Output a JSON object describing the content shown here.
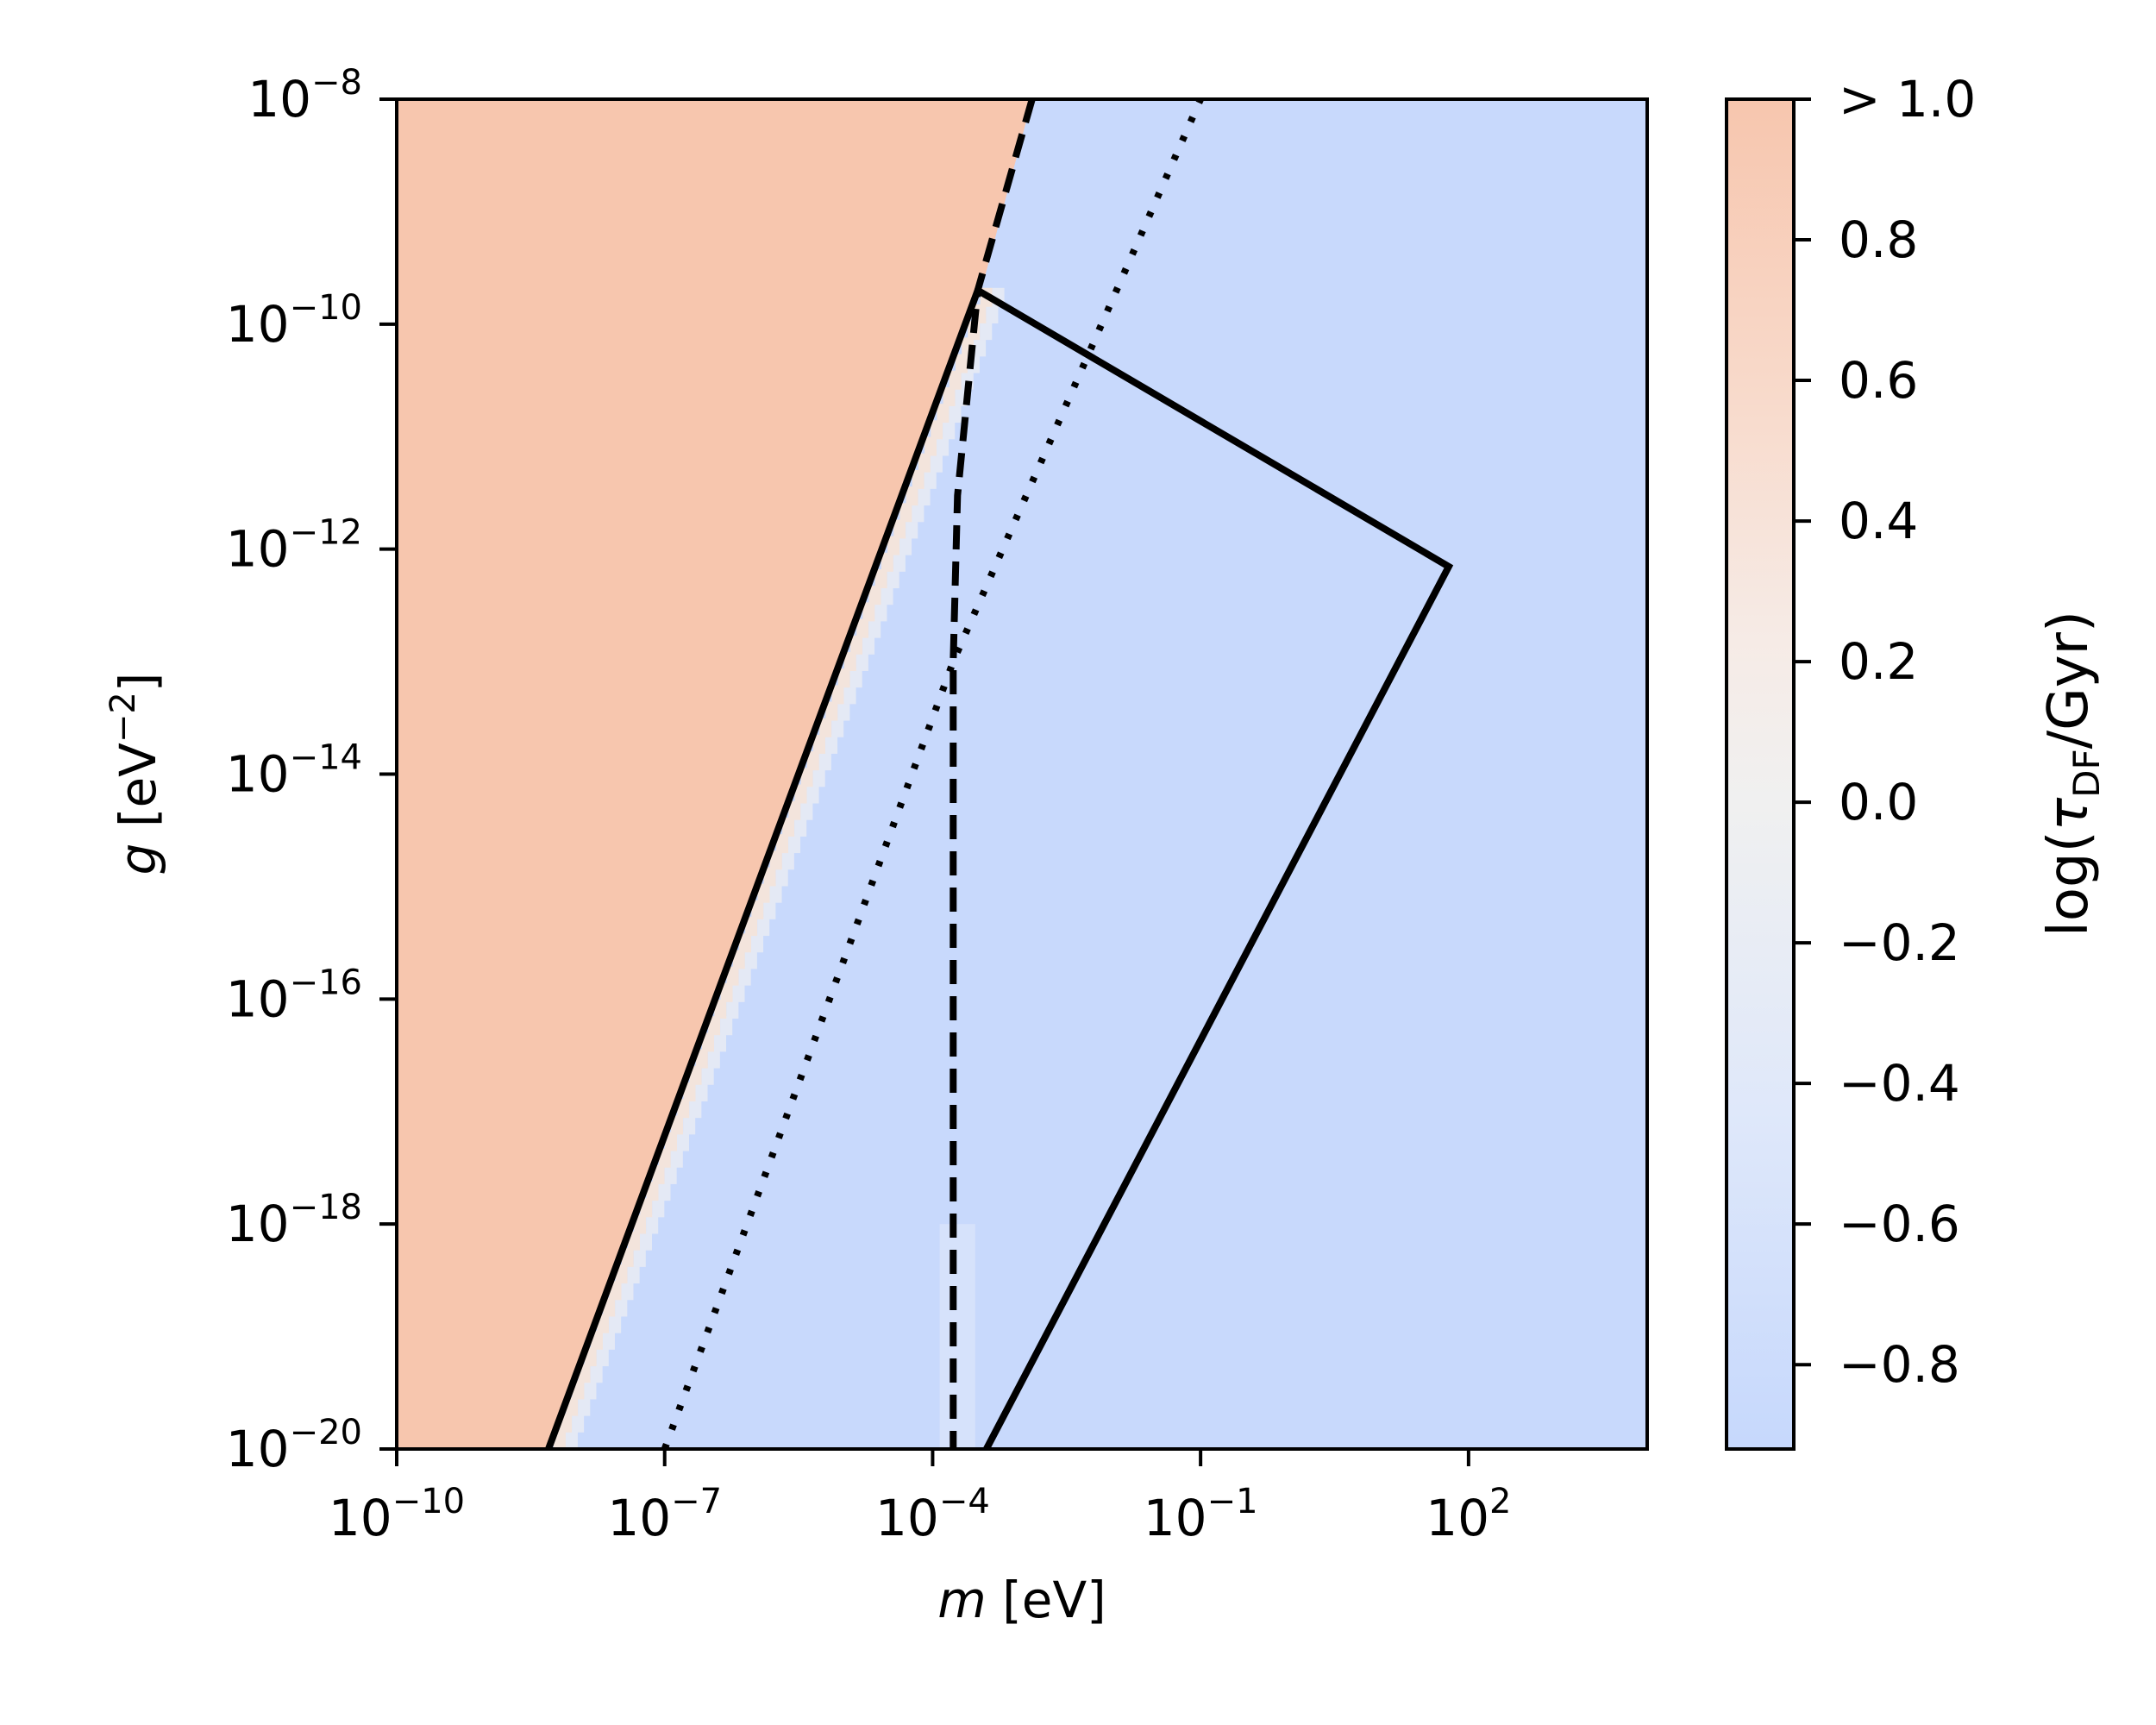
{
  "chart_data": {
    "type": "heatmap",
    "title": "",
    "x_scale": "log",
    "y_scale": "log",
    "xlim": [
      1e-10,
      10000
    ],
    "ylim": [
      1e-20,
      1e-08
    ],
    "xlabel": {
      "var": "m",
      "unit": " [eV]"
    },
    "ylabel": {
      "var": "g",
      "unit_pre": " [eV",
      "unit_exp": "−2",
      "unit_post": "]"
    },
    "x_ticks": [
      {
        "value": 1e-10,
        "base": "10",
        "exp": "−10"
      },
      {
        "value": 1e-07,
        "base": "10",
        "exp": "−7"
      },
      {
        "value": 0.0001,
        "base": "10",
        "exp": "−4"
      },
      {
        "value": 0.1,
        "base": "10",
        "exp": "−1"
      },
      {
        "value": 100,
        "base": "10",
        "exp": "2"
      }
    ],
    "y_ticks": [
      {
        "value": 1e-20,
        "base": "10",
        "exp": "−20"
      },
      {
        "value": 1e-18,
        "base": "10",
        "exp": "−18"
      },
      {
        "value": 1e-16,
        "base": "10",
        "exp": "−16"
      },
      {
        "value": 1e-14,
        "base": "10",
        "exp": "−14"
      },
      {
        "value": 1e-12,
        "base": "10",
        "exp": "−12"
      },
      {
        "value": 1e-10,
        "base": "10",
        "exp": "−10"
      },
      {
        "value": 1e-08,
        "base": "10",
        "exp": "−8"
      }
    ],
    "colorbar": {
      "label_pre": "log(",
      "label_tau": "τ",
      "label_sub": "DF",
      "label_post": "/Gyr)",
      "range": [
        -0.92,
        1.0
      ],
      "ticks": [
        {
          "value": 1.0,
          "label": "> 1.0"
        },
        {
          "value": 0.8,
          "label": "0.8"
        },
        {
          "value": 0.6,
          "label": "0.6"
        },
        {
          "value": 0.4,
          "label": "0.4"
        },
        {
          "value": 0.2,
          "label": "0.2"
        },
        {
          "value": 0.0,
          "label": "0.0"
        },
        {
          "value": -0.2,
          "label": "−0.2"
        },
        {
          "value": -0.4,
          "label": "−0.4"
        },
        {
          "value": -0.6,
          "label": "−0.6"
        },
        {
          "value": -0.8,
          "label": "−0.8"
        }
      ]
    },
    "colors": {
      "high": "#f7c6ae",
      "low": "#c8d9fc",
      "mid": "#eeeeee"
    },
    "regions": {
      "high_value_boundary": [
        [
          5e-09,
          1e-20
        ],
        [
          0.00035,
          2e-10
        ],
        [
          0.0013,
          1e-08
        ]
      ],
      "description_values": {
        "left_region": 1.0,
        "right_region": -0.8
      }
    },
    "curves": [
      {
        "style": "solid",
        "points": [
          [
            5e-09,
            1e-20
          ],
          [
            0.00032,
            2e-10
          ],
          [
            60,
            7e-13
          ],
          [
            0.0004,
            1e-20
          ]
        ]
      },
      {
        "style": "dashed",
        "points": [
          [
            0.0013,
            1e-08
          ],
          [
            0.00032,
            2e-10
          ],
          [
            0.00019,
            3e-12
          ],
          [
            0.00017,
            1e-13
          ],
          [
            0.00017,
            1e-20
          ]
        ]
      },
      {
        "style": "dotted",
        "points": [
          [
            1e-07,
            1e-20
          ],
          [
            0.00017,
            1e-13
          ],
          [
            0.1,
            1e-08
          ]
        ]
      }
    ]
  }
}
